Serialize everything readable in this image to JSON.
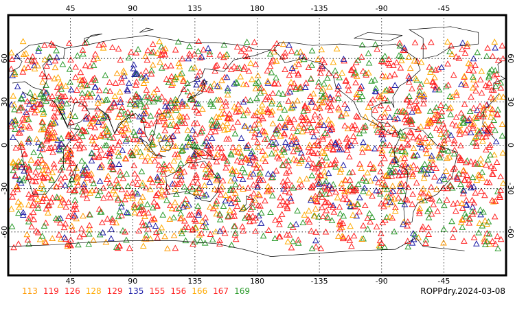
{
  "map": {
    "product_label": "ROPPdry.2024-03-08",
    "lon_ticks_top": [
      "45",
      "90",
      "135",
      "180",
      "-135",
      "-90",
      "-45"
    ],
    "lon_ticks_bottom": [
      "45",
      "90",
      "135",
      "180",
      "-135",
      "-90",
      "-45"
    ],
    "lat_ticks": [
      "60",
      "30",
      "0",
      "-30",
      "-60"
    ],
    "marker_shape": "triangle-outline",
    "legend": [
      {
        "label": "113",
        "color": "#ff9900"
      },
      {
        "label": "119",
        "color": "#ff2222"
      },
      {
        "label": "126",
        "color": "#ff2222"
      },
      {
        "label": "128",
        "color": "#ffaa00"
      },
      {
        "label": "129",
        "color": "#ff2222"
      },
      {
        "label": "135",
        "color": "#1a1aa6"
      },
      {
        "label": "155",
        "color": "#ff2222"
      },
      {
        "label": "156",
        "color": "#ff2222"
      },
      {
        "label": "166",
        "color": "#ffaa00"
      },
      {
        "label": "167",
        "color": "#ff2222"
      },
      {
        "label": "169",
        "color": "#2a9a2a"
      }
    ]
  }
}
